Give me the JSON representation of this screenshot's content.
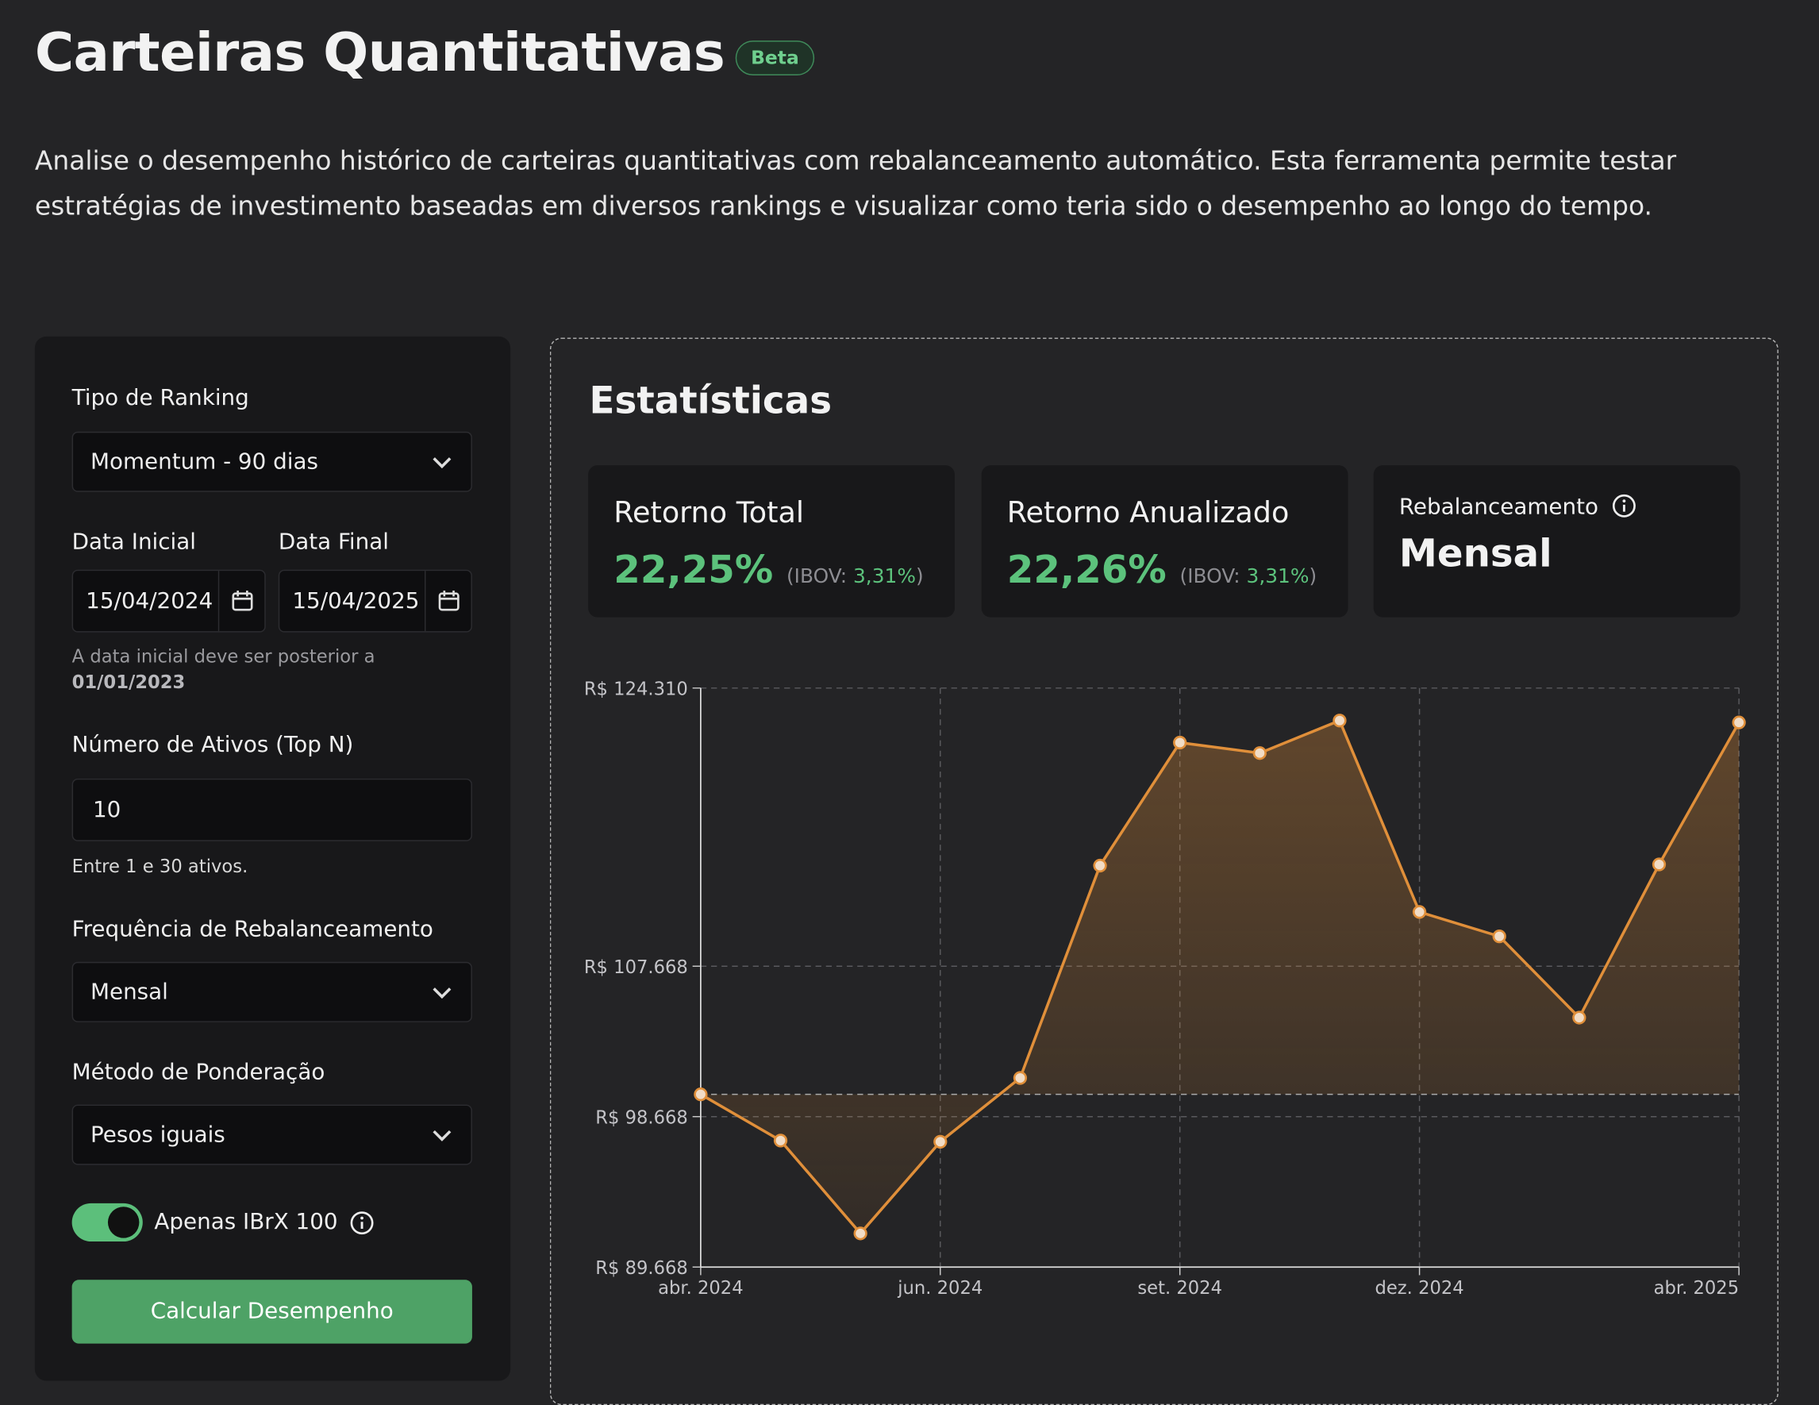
{
  "header": {
    "title": "Carteiras Quantitativas",
    "badge": "Beta",
    "description": "Analise o desempenho histórico de carteiras quantitativas com rebalanceamento automático. Esta ferramenta permite testar estratégias de investimento baseadas em diversos rankings e visualizar como teria sido o desempenho ao longo do tempo."
  },
  "form": {
    "ranking": {
      "label": "Tipo de Ranking",
      "value": "Momentum - 90 dias"
    },
    "start_date": {
      "label": "Data Inicial",
      "value": "15/04/2024"
    },
    "end_date": {
      "label": "Data Final",
      "value": "15/04/2025"
    },
    "date_hint": {
      "text": "A data inicial deve ser posterior a",
      "date": "01/01/2023"
    },
    "top_n": {
      "label": "Número de Ativos (Top N)",
      "value": "10",
      "hint": "Entre 1 e 30 ativos."
    },
    "frequency": {
      "label": "Frequência de Rebalanceamento",
      "value": "Mensal"
    },
    "weighting": {
      "label": "Método de Ponderação",
      "value": "Pesos iguais"
    },
    "ibrx": {
      "label": "Apenas IBrX 100"
    },
    "submit": "Calcular Desempenho"
  },
  "stats": {
    "title": "Estatísticas",
    "cards": [
      {
        "label": "Retorno Total",
        "value": "22,25%",
        "benchmark_prefix": "(IBOV:",
        "benchmark": "3,31%",
        "benchmark_suffix": ")"
      },
      {
        "label": "Retorno Anualizado",
        "value": "22,26%",
        "benchmark_prefix": "(IBOV:",
        "benchmark": "3,31%",
        "benchmark_suffix": ")"
      }
    ],
    "rebalance": {
      "label": "Rebalanceamento",
      "value": "Mensal"
    }
  },
  "chart_data": {
    "type": "line",
    "categories": [
      "abr. 2024",
      null,
      null,
      "jun. 2024",
      null,
      null,
      "set. 2024",
      null,
      null,
      "dez. 2024",
      null,
      null,
      null,
      "abr. 2025"
    ],
    "values": [
      100000,
      97235,
      91681,
      97165,
      100983,
      113687,
      121046,
      120421,
      122365,
      110911,
      109453,
      104593,
      113757,
      122250
    ],
    "color": "#e08f3a",
    "baseline": 100000,
    "ylim": [
      89668,
      124310
    ],
    "yticks": [
      {
        "value": 89668,
        "label": "R$ 89.668"
      },
      {
        "value": 98668,
        "label": "R$ 98.668"
      },
      {
        "value": 107668,
        "label": "R$ 107.668"
      },
      {
        "value": 124310,
        "label": "R$ 124.310"
      }
    ],
    "grid": true
  }
}
